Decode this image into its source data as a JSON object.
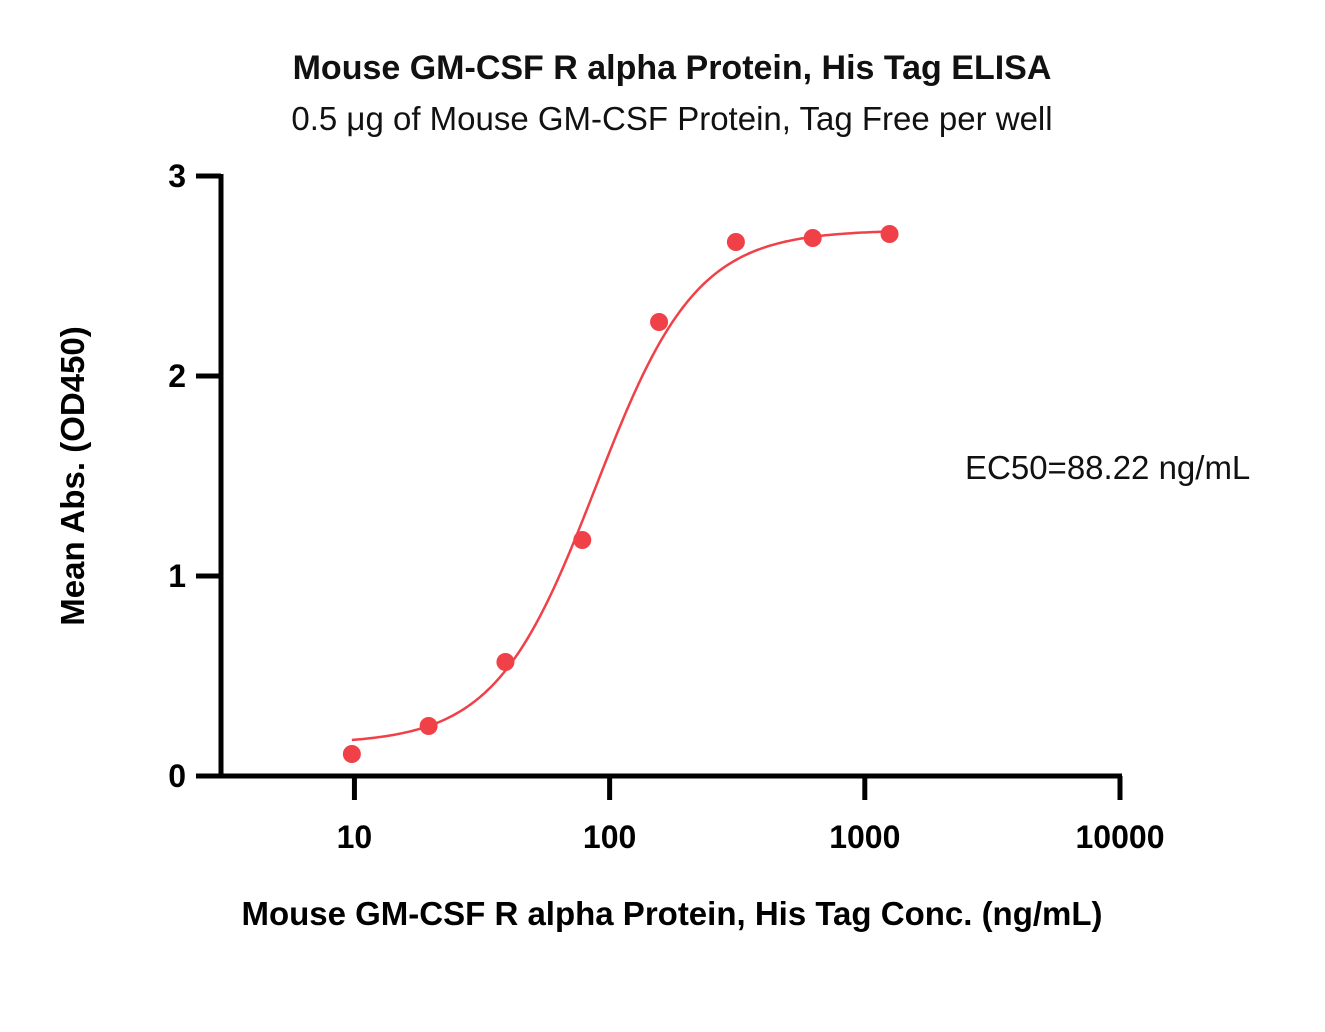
{
  "chart_data": {
    "type": "scatter",
    "title": "Mouse GM-CSF R alpha Protein, His Tag ELISA",
    "subtitle": "0.5 μg of Mouse GM-CSF Protein, Tag Free per well",
    "xlabel": "Mouse GM-CSF R alpha Protein, His Tag Conc. (ng/mL)",
    "ylabel": "Mean Abs. (OD450)",
    "x_scale": "log",
    "xlim": [
      3,
      10000
    ],
    "ylim": [
      0,
      3
    ],
    "x_ticks": [
      10,
      100,
      1000,
      10000
    ],
    "x_tick_labels": [
      "10",
      "100",
      "1000",
      "10000"
    ],
    "y_ticks": [
      0,
      1,
      2,
      3
    ],
    "y_tick_labels": [
      "0",
      "1",
      "2",
      "3"
    ],
    "annotation": "EC50=88.22 ng/mL",
    "series": [
      {
        "x": [
          9.77,
          19.53,
          39.06,
          78.13,
          156.25,
          312.5,
          625,
          1250
        ],
        "y": [
          0.11,
          0.25,
          0.57,
          1.18,
          2.27,
          2.67,
          2.69,
          2.71
        ],
        "color": "#f04048"
      }
    ],
    "fit": {
      "type": "4PL",
      "bottom": 0.16,
      "top": 2.73,
      "ec50": 88.22,
      "hill": 2.2,
      "x_range": [
        9.77,
        1250
      ],
      "color": "#f04048"
    },
    "grid": false,
    "legend": "none"
  }
}
